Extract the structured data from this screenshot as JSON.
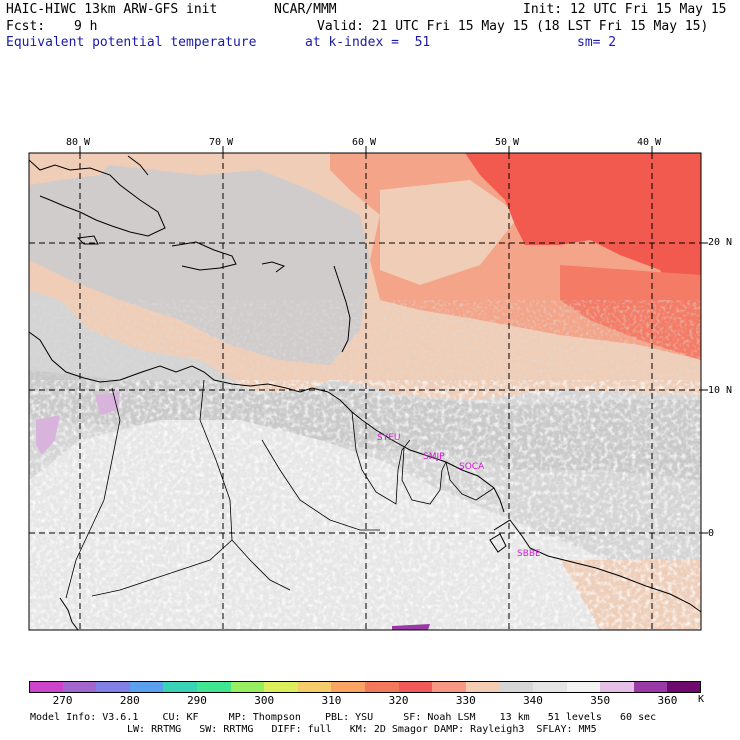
{
  "header": {
    "title": "HAIC-HIWC 13km ARW-GFS init",
    "center": "NCAR/MMM",
    "init": "Init: 12 UTC Fri 15 May 15",
    "fcst_label": "Fcst:",
    "fcst_value": "9 h",
    "valid": "Valid: 21 UTC Fri 15 May 15 (18 LST Fri 15 May 15)",
    "field": "Equivalent potential temperature",
    "level": "at k-index =  51",
    "smoothing": "sm= 2"
  },
  "map": {
    "lon_labels": [
      "80 W",
      "70 W",
      "60 W",
      "50 W",
      "40 W"
    ],
    "lat_labels": [
      "20 N",
      "10 N",
      "0"
    ],
    "stations": [
      "SYEU",
      "SMJP",
      "SOCA",
      "SBBE"
    ]
  },
  "colorbar": {
    "colors": [
      "#cc44cc",
      "#a366cc",
      "#8080e6",
      "#5aa0ee",
      "#3ad2b4",
      "#40e690",
      "#96ee60",
      "#dcee5a",
      "#f6cc6a",
      "#f9a462",
      "#f4785c",
      "#f25a5a",
      "#f69882",
      "#f4ccb4",
      "#d6d6d6",
      "#e4e4e4",
      "#f2f2f2",
      "#e6bfe6",
      "#9a3aa6",
      "#6e0a6e"
    ],
    "labels": [
      "270",
      "280",
      "290",
      "300",
      "310",
      "320",
      "330",
      "340",
      "350",
      "360"
    ],
    "unit": "K"
  },
  "footer": {
    "line1": "Model Info: V3.6.1    CU: KF     MP: Thompson    PBL: YSU     SF: Noah LSM    13 km   51 levels   60 sec",
    "line2": "LW: RRTMG   SW: RRTMG   DIFF: full   KM: 2D Smagor DAMP: Rayleigh3  SFLAY: MM5"
  }
}
